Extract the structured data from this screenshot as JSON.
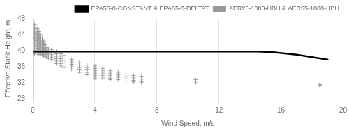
{
  "chart_data": {
    "type": "scatter",
    "xlabel": "Wind Speed, m/s",
    "ylabel": "Effective Stack Height, m",
    "xlim": [
      0,
      20
    ],
    "ylim": [
      28,
      48
    ],
    "xticks": [
      0,
      4,
      8,
      12,
      16,
      20
    ],
    "yticks": [
      28,
      32,
      36,
      40,
      44,
      48
    ],
    "grid": true,
    "legend": "upper right",
    "series": [
      {
        "name": "EPA55-0-CONSTANT & EPA55-0-DELTAT",
        "type": "line",
        "color": "#000000",
        "x": [
          0.0,
          14.5,
          15.5,
          17.0,
          18.0,
          19.0
        ],
        "values": [
          39.8,
          39.8,
          39.6,
          39.0,
          38.4,
          37.8
        ]
      },
      {
        "name": "AER25-1000-HBH & AER55-1000-HBH",
        "type": "scatter",
        "color": "#999999",
        "marker": "+",
        "x": [
          0.1,
          0.1,
          0.1,
          0.1,
          0.1,
          0.1,
          0.1,
          0.1,
          0.1,
          0.1,
          0.1,
          0.1,
          0.1,
          0.2,
          0.2,
          0.2,
          0.2,
          0.2,
          0.2,
          0.2,
          0.2,
          0.2,
          0.2,
          0.2,
          0.2,
          0.3,
          0.3,
          0.3,
          0.3,
          0.3,
          0.3,
          0.3,
          0.3,
          0.3,
          0.3,
          0.3,
          0.4,
          0.4,
          0.4,
          0.4,
          0.4,
          0.4,
          0.4,
          0.4,
          0.4,
          0.4,
          0.5,
          0.5,
          0.5,
          0.5,
          0.5,
          0.5,
          0.5,
          0.5,
          0.5,
          0.6,
          0.6,
          0.6,
          0.6,
          0.6,
          0.6,
          0.6,
          0.6,
          0.7,
          0.7,
          0.7,
          0.7,
          0.7,
          0.7,
          0.7,
          0.8,
          0.8,
          0.8,
          0.8,
          0.8,
          0.8,
          0.9,
          0.9,
          0.9,
          0.9,
          0.9,
          1.0,
          1.0,
          1.0,
          1.0,
          1.0,
          1.2,
          1.2,
          1.2,
          1.2,
          1.2,
          1.5,
          1.5,
          1.5,
          1.5,
          1.5,
          1.5,
          1.8,
          1.8,
          1.8,
          1.8,
          1.8,
          1.8,
          2.0,
          2.0,
          2.0,
          2.0,
          2.0,
          2.0,
          2.5,
          2.5,
          2.5,
          2.5,
          2.5,
          3.0,
          3.0,
          3.0,
          3.0,
          3.0,
          3.5,
          3.5,
          3.5,
          3.5,
          3.5,
          4.0,
          4.0,
          4.0,
          4.0,
          4.0,
          4.0,
          4.5,
          4.5,
          4.5,
          4.5,
          4.5,
          5.0,
          5.0,
          5.0,
          5.0,
          5.0,
          5.5,
          5.5,
          5.5,
          5.5,
          6.0,
          6.0,
          6.0,
          6.0,
          6.5,
          6.5,
          6.5,
          6.5,
          7.0,
          7.0,
          7.0,
          7.0,
          10.5,
          10.5,
          10.5,
          18.5,
          18.5
        ],
        "values": [
          46.5,
          45.8,
          45.2,
          44.6,
          44.0,
          43.4,
          42.8,
          42.2,
          41.6,
          41.0,
          40.4,
          39.8,
          39.2,
          46.2,
          45.5,
          44.9,
          44.3,
          43.7,
          43.1,
          42.5,
          41.9,
          41.3,
          40.7,
          40.1,
          39.5,
          45.5,
          44.8,
          44.2,
          43.6,
          43.0,
          42.4,
          41.8,
          41.2,
          40.6,
          40.0,
          39.4,
          44.8,
          44.1,
          43.5,
          42.9,
          42.3,
          41.7,
          41.1,
          40.5,
          39.9,
          39.3,
          44.0,
          43.3,
          42.7,
          42.1,
          41.5,
          40.9,
          40.3,
          39.7,
          39.1,
          43.2,
          42.6,
          42.0,
          41.4,
          40.8,
          40.2,
          39.6,
          39.0,
          42.4,
          41.8,
          41.2,
          40.6,
          40.0,
          39.4,
          38.8,
          41.5,
          40.9,
          40.3,
          39.7,
          39.1,
          38.5,
          40.8,
          40.2,
          39.6,
          39.0,
          38.4,
          40.5,
          39.9,
          39.3,
          38.7,
          38.1,
          40.2,
          39.6,
          39.0,
          38.4,
          37.8,
          39.8,
          39.2,
          38.6,
          38.0,
          37.4,
          36.8,
          39.2,
          38.6,
          38.0,
          37.4,
          36.8,
          36.2,
          38.8,
          38.2,
          37.6,
          37.0,
          36.4,
          35.8,
          37.8,
          37.2,
          36.6,
          36.0,
          35.4,
          37.0,
          36.4,
          35.8,
          35.2,
          34.6,
          36.4,
          35.8,
          35.2,
          34.6,
          34.0,
          36.2,
          35.6,
          35.0,
          34.4,
          33.8,
          33.2,
          35.6,
          35.0,
          34.4,
          33.8,
          33.2,
          35.0,
          34.4,
          33.8,
          33.2,
          32.8,
          34.6,
          34.0,
          33.4,
          32.8,
          34.2,
          33.6,
          33.0,
          32.4,
          33.8,
          33.2,
          32.6,
          32.2,
          33.5,
          32.9,
          32.3,
          32.0,
          32.8,
          32.4,
          32.0,
          31.6,
          31.2
        ]
      }
    ]
  }
}
